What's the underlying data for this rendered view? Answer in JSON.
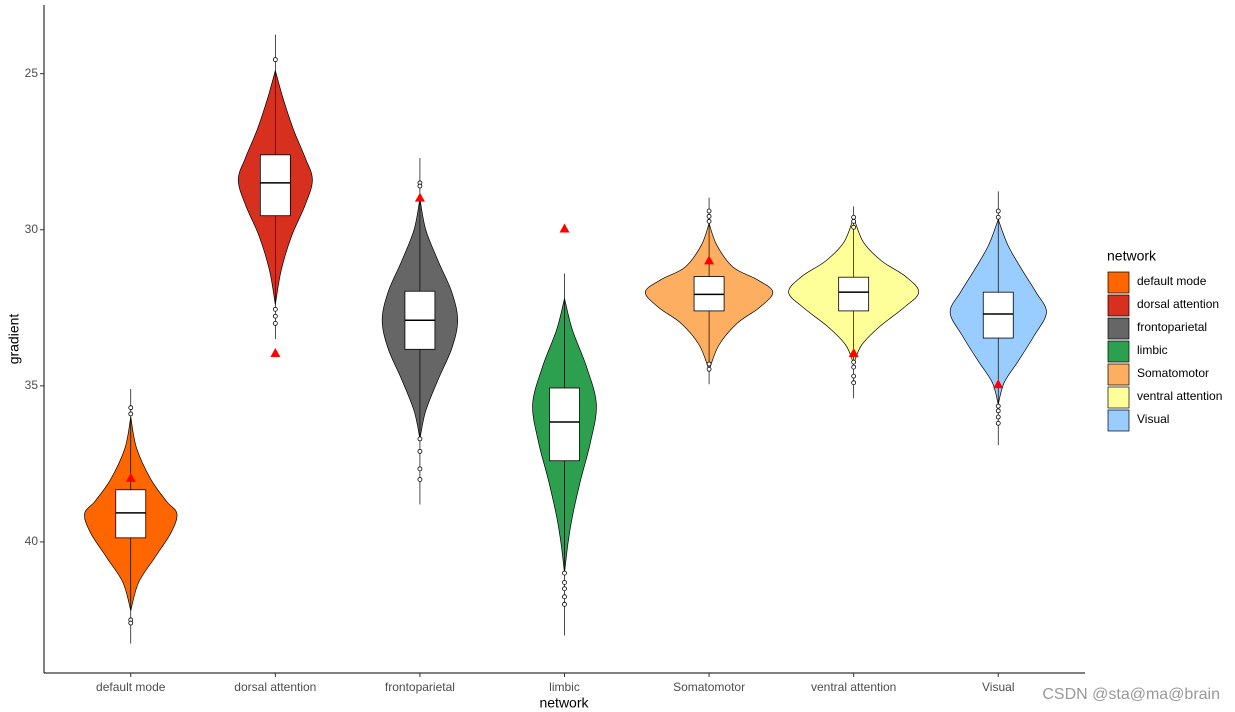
{
  "chart_data": {
    "type": "violin",
    "x_label": "network",
    "y_label": "gradient",
    "legend_title": "network",
    "legend_position": "right",
    "watermark": "CSDN @sta@ma@brain",
    "ylim": [
      22.8,
      44.2
    ],
    "y_reversed": true,
    "yticks": [
      25,
      30,
      35,
      40
    ],
    "grid": false,
    "categories": [
      "default mode",
      "dorsal attention",
      "frontoparietal",
      "limbic",
      "Somatomotor",
      "ventral attention",
      "Visual"
    ],
    "colors": [
      "#FF6600",
      "#D7301F",
      "#666666",
      "#2CA04F",
      "#FDAE61",
      "#FFFF99",
      "#99CCFF"
    ],
    "marker_color": "#FF0000",
    "stats": [
      {
        "whisker_low": 35.1,
        "box_low": 38.33,
        "median": 39.07,
        "box_high": 39.87,
        "whisker_high": 43.26,
        "outliers": [
          35.7,
          35.9,
          42.5,
          42.6
        ],
        "marker": 37.95,
        "violin_y": [
          36.0,
          37.0,
          38.0,
          38.7,
          39.1,
          39.7,
          40.5,
          41.3,
          42.2
        ],
        "violin_density": [
          0,
          0.09,
          0.31,
          0.55,
          0.71,
          0.62,
          0.37,
          0.12,
          0
        ]
      },
      {
        "whisker_low": 23.75,
        "box_low": 27.6,
        "median": 28.5,
        "box_high": 29.55,
        "whisker_high": 33.5,
        "outliers": [
          24.55,
          32.55,
          32.77,
          33.0
        ],
        "marker": 33.95,
        "violin_y": [
          24.9,
          25.8,
          26.8,
          27.7,
          28.4,
          29.2,
          30.2,
          31.3,
          32.4
        ],
        "violin_density": [
          0,
          0.12,
          0.28,
          0.46,
          0.57,
          0.46,
          0.25,
          0.09,
          0
        ]
      },
      {
        "whisker_low": 27.7,
        "box_low": 31.97,
        "median": 32.9,
        "box_high": 33.83,
        "whisker_high": 38.8,
        "outliers": [
          28.5,
          28.6,
          36.7,
          37.1,
          37.66,
          38.0
        ],
        "marker": 28.97,
        "violin_y": [
          29.0,
          30.0,
          31.0,
          32.0,
          32.9,
          33.8,
          34.8,
          35.8,
          36.7
        ],
        "violin_density": [
          0,
          0.09,
          0.28,
          0.49,
          0.58,
          0.49,
          0.28,
          0.09,
          0
        ]
      },
      {
        "whisker_low": 31.4,
        "box_low": 35.07,
        "median": 36.16,
        "box_high": 37.4,
        "whisker_high": 43.0,
        "outliers": [
          41.0,
          41.3,
          41.5,
          41.76,
          42.0
        ],
        "marker": 29.96,
        "violin_y": [
          32.2,
          33.2,
          34.4,
          35.6,
          36.8,
          38.0,
          39.2,
          40.1,
          41.0
        ],
        "violin_density": [
          0,
          0.12,
          0.34,
          0.49,
          0.4,
          0.25,
          0.12,
          0.05,
          0
        ]
      },
      {
        "whisker_low": 28.97,
        "box_low": 31.5,
        "median": 32.07,
        "box_high": 32.6,
        "whisker_high": 34.95,
        "outliers": [
          29.4,
          29.57,
          29.73,
          34.3,
          34.47
        ],
        "marker": 30.98,
        "violin_y": [
          29.8,
          30.5,
          31.2,
          31.6,
          32.0,
          32.5,
          33.0,
          33.7,
          34.5
        ],
        "violin_density": [
          0,
          0.12,
          0.37,
          0.74,
          0.98,
          0.77,
          0.43,
          0.15,
          0
        ]
      },
      {
        "whisker_low": 29.25,
        "box_low": 31.52,
        "median": 32.0,
        "box_high": 32.6,
        "whisker_high": 35.4,
        "outliers": [
          29.6,
          29.73,
          29.92,
          34.24,
          34.4,
          34.69,
          34.9
        ],
        "marker": 33.95,
        "violin_y": [
          29.6,
          30.4,
          31.0,
          31.5,
          32.0,
          32.5,
          33.1,
          33.7,
          34.3
        ],
        "violin_density": [
          0,
          0.15,
          0.43,
          0.8,
          1.0,
          0.77,
          0.4,
          0.12,
          0
        ]
      },
      {
        "whisker_low": 28.77,
        "box_low": 32.0,
        "median": 32.7,
        "box_high": 33.47,
        "whisker_high": 36.9,
        "outliers": [
          29.4,
          29.6,
          35.65,
          35.8,
          36.0,
          36.2
        ],
        "marker": 34.95,
        "violin_y": [
          29.67,
          30.5,
          31.3,
          32.0,
          32.65,
          33.4,
          34.2,
          34.9,
          35.6
        ],
        "violin_density": [
          0,
          0.15,
          0.37,
          0.58,
          0.74,
          0.55,
          0.31,
          0.09,
          0
        ]
      }
    ]
  }
}
